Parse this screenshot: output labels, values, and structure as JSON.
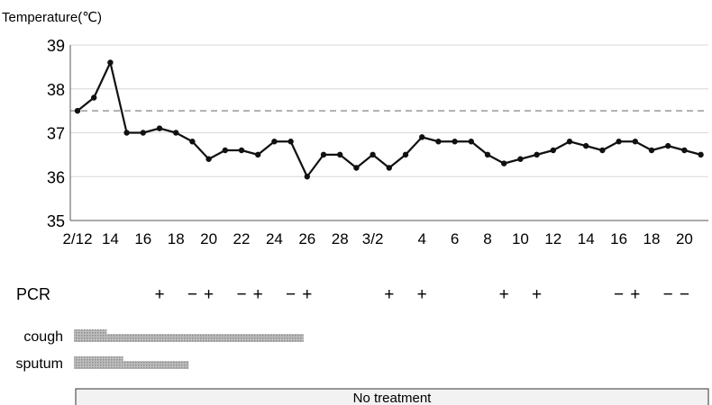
{
  "chart_data": {
    "type": "line",
    "ylabel": "Temperature(℃)",
    "ylim": [
      35,
      39
    ],
    "yticks": [
      "35",
      "36",
      "37",
      "38",
      "39"
    ],
    "grid": "horizontal",
    "reference_line": {
      "value": 37.5,
      "style": "dashed"
    },
    "x_tick_labels": [
      "2/12",
      "14",
      "16",
      "18",
      "20",
      "22",
      "24",
      "26",
      "28",
      "3/2",
      "4",
      "6",
      "8",
      "10",
      "12",
      "14",
      "16",
      "18",
      "20"
    ],
    "x": [
      "2/12",
      "2/13",
      "2/14",
      "2/15",
      "2/16",
      "2/17",
      "2/18",
      "2/19",
      "2/20",
      "2/21",
      "2/22",
      "2/23",
      "2/24",
      "2/25",
      "2/26",
      "2/27",
      "2/28",
      "2/29",
      "3/1",
      "3/2",
      "3/3",
      "3/4",
      "3/5",
      "3/6",
      "3/7",
      "3/8",
      "3/9",
      "3/10",
      "3/11",
      "3/12",
      "3/13",
      "3/14",
      "3/15",
      "3/16",
      "3/17",
      "3/18",
      "3/19",
      "3/20",
      "3/21"
    ],
    "values": [
      37.5,
      37.8,
      38.6,
      37.0,
      37.0,
      37.1,
      37.0,
      36.8,
      36.4,
      36.6,
      36.6,
      36.5,
      36.8,
      36.8,
      36.0,
      36.5,
      36.5,
      36.2,
      36.5,
      36.2,
      36.5,
      36.9,
      36.8,
      36.8,
      36.8,
      36.5,
      36.3,
      36.4,
      36.5,
      36.6,
      36.8,
      36.7,
      36.6,
      36.8,
      36.8,
      36.6,
      36.7,
      36.6,
      36.5
    ]
  },
  "pcr": {
    "label": "PCR",
    "results": [
      {
        "date": "2/17",
        "result": "+"
      },
      {
        "date": "2/19",
        "result": "−"
      },
      {
        "date": "2/20",
        "result": "+"
      },
      {
        "date": "2/22",
        "result": "−"
      },
      {
        "date": "2/23",
        "result": "+"
      },
      {
        "date": "2/25",
        "result": "−"
      },
      {
        "date": "2/26",
        "result": "+"
      },
      {
        "date": "3/2",
        "result": "+"
      },
      {
        "date": "3/4",
        "result": "+"
      },
      {
        "date": "3/9",
        "result": "+"
      },
      {
        "date": "3/11",
        "result": "+"
      },
      {
        "date": "3/16",
        "result": "−"
      },
      {
        "date": "3/17",
        "result": "+"
      },
      {
        "date": "3/19",
        "result": "−"
      },
      {
        "date": "3/20",
        "result": "−"
      }
    ]
  },
  "symptoms": [
    {
      "label": "cough",
      "bars": [
        {
          "from": "2/12",
          "to": "2/14",
          "level": "high"
        },
        {
          "from": "2/14",
          "to": "2/26",
          "level": "low"
        }
      ]
    },
    {
      "label": "sputum",
      "bars": [
        {
          "from": "2/12",
          "to": "2/15",
          "level": "high"
        },
        {
          "from": "2/15",
          "to": "2/19",
          "level": "low"
        }
      ]
    }
  ],
  "treatment": {
    "label": "No treatment"
  },
  "colors": {
    "line": "#111111",
    "grid": "#d8d8d8",
    "reference": "#9a9a9a",
    "bar": "#a6a6a6",
    "treatment_box": "#f2f2f2"
  }
}
